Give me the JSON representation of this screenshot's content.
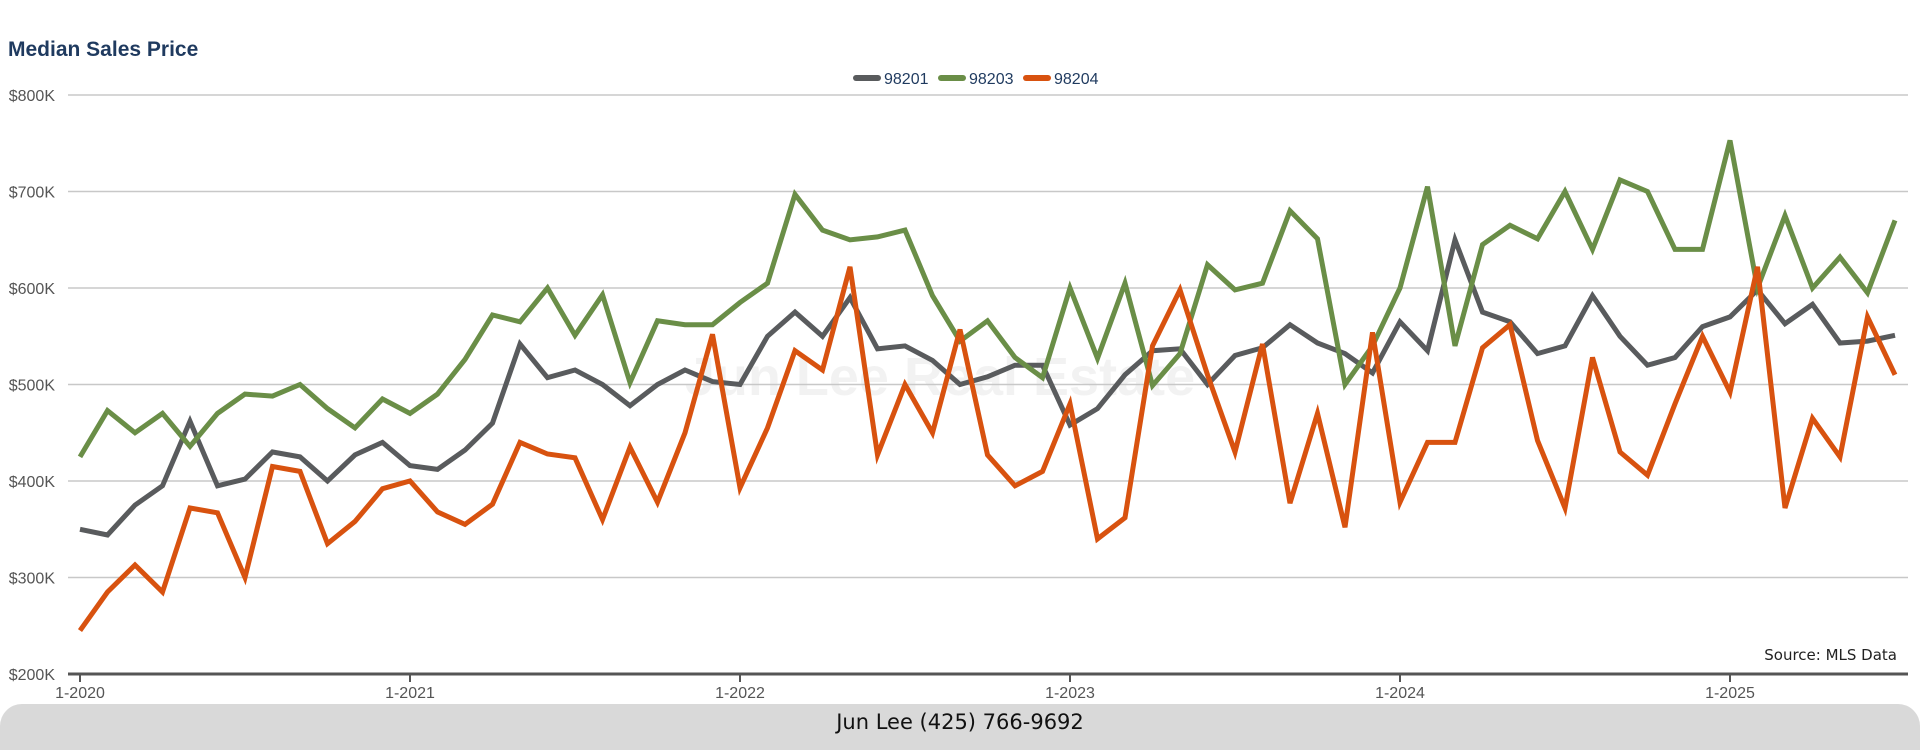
{
  "chart_data": {
    "type": "line",
    "title": "Median Sales Price",
    "source": "Source: MLS Data",
    "watermark": "Jun Lee Real Estate",
    "xlabel": "",
    "ylabel": "",
    "ylim": [
      200000,
      800000
    ],
    "y_ticks": [
      {
        "value": 200000,
        "label": "$200K"
      },
      {
        "value": 300000,
        "label": "$300K"
      },
      {
        "value": 400000,
        "label": "$400K"
      },
      {
        "value": 500000,
        "label": "$500K"
      },
      {
        "value": 600000,
        "label": "$600K"
      },
      {
        "value": 700000,
        "label": "$700K"
      },
      {
        "value": 800000,
        "label": "$800K"
      }
    ],
    "x_start": "1-2020",
    "x_ticks": [
      {
        "index": 0,
        "label": "1-2020"
      },
      {
        "index": 12,
        "label": "1-2021"
      },
      {
        "index": 24,
        "label": "1-2022"
      },
      {
        "index": 36,
        "label": "1-2023"
      },
      {
        "index": 48,
        "label": "1-2024"
      },
      {
        "index": 60,
        "label": "1-2025"
      }
    ],
    "grid": true,
    "legend_position": "top-center",
    "series": [
      {
        "name": "98201",
        "color": "#595b5d",
        "values": [
          350000,
          344000,
          375000,
          395000,
          462000,
          395000,
          402000,
          430000,
          425000,
          400000,
          427000,
          440000,
          416000,
          412000,
          432000,
          460000,
          542000,
          507000,
          515000,
          500000,
          478000,
          500000,
          515000,
          503000,
          500000,
          550000,
          575000,
          550000,
          590000,
          537000,
          540000,
          525000,
          500000,
          508000,
          520000,
          520000,
          458000,
          475000,
          510000,
          535000,
          537000,
          500000,
          530000,
          538000,
          562000,
          543000,
          532000,
          512000,
          565000,
          535000,
          650000,
          575000,
          565000,
          532000,
          540000,
          592000,
          550000,
          520000,
          528000,
          560000,
          570000,
          598000,
          563000,
          583000,
          543000,
          545000,
          551000
        ]
      },
      {
        "name": "98203",
        "color": "#6a8e47",
        "values": [
          425000,
          473000,
          450000,
          470000,
          436000,
          470000,
          490000,
          488000,
          500000,
          475000,
          455000,
          485000,
          470000,
          490000,
          526000,
          572000,
          565000,
          600000,
          551000,
          593000,
          502000,
          566000,
          562000,
          562000,
          585000,
          605000,
          697000,
          660000,
          650000,
          653000,
          660000,
          592000,
          545000,
          566000,
          528000,
          507000,
          600000,
          527000,
          605000,
          499000,
          532000,
          624000,
          598000,
          605000,
          680000,
          651000,
          500000,
          540000,
          600000,
          705000,
          540000,
          645000,
          665000,
          651000,
          700000,
          640000,
          712000,
          700000,
          640000,
          640000,
          753000,
          600000,
          675000,
          600000,
          632000,
          595000,
          670000
        ]
      },
      {
        "name": "98204",
        "color": "#d8520f",
        "values": [
          245000,
          285000,
          313000,
          285000,
          372000,
          367000,
          300000,
          415000,
          410000,
          335000,
          358000,
          392000,
          400000,
          368000,
          355000,
          376000,
          440000,
          428000,
          424000,
          360000,
          435000,
          378000,
          450000,
          552000,
          393000,
          455000,
          535000,
          515000,
          622000,
          427000,
          500000,
          450000,
          557000,
          427000,
          395000,
          410000,
          480000,
          340000,
          362000,
          540000,
          598000,
          510000,
          430000,
          542000,
          377000,
          470000,
          352000,
          554000,
          378000,
          440000,
          440000,
          538000,
          562000,
          442000,
          372000,
          528000,
          430000,
          406000,
          480000,
          550000,
          492000,
          622000,
          372000,
          465000,
          425000,
          570000,
          510000
        ]
      }
    ]
  },
  "footer": {
    "contact": "Jun Lee (425) 766-9692"
  }
}
